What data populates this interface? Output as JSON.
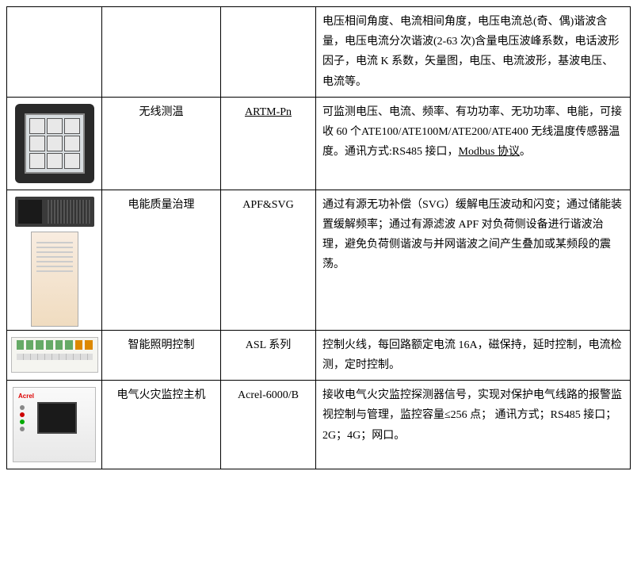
{
  "table": {
    "rows": [
      {
        "img_type": "none",
        "name": "",
        "model": "",
        "desc": "电压相间角度、电流相间角度，电压电流总(奇、偶)谐波含量，电压电流分次谐波(2-63 次)含量电压波峰系数，电话波形因子，电流 K 系数，矢量图，电压、电流波形，基波电压、电流等。"
      },
      {
        "img_type": "meter",
        "name": "无线测温",
        "model": "ARTM-Pn",
        "model_underline": true,
        "desc": "可监测电压、电流、频率、有功功率、无功功率、电能，可接收 60 个ATE100/ATE100M/ATE200/ATE400 无线温度传感器温度。通讯方式:RS485 接口，",
        "desc_u": "Modbus 协议"
      },
      {
        "img_type": "apf",
        "name": "电能质量治理",
        "model": "APF&SVG",
        "desc": "通过有源无功补偿（SVG）缓解电压波动和闪变；通过储能装置缓解频率；通过有源滤波 APF 对负荷侧设备进行谐波治理，避免负荷侧谐波与并网谐波之间产生叠加或某频段的震荡。"
      },
      {
        "img_type": "asl",
        "name": "智能照明控制",
        "model": "ASL 系列",
        "desc": "控制火线，每回路额定电流 16A，磁保持，延时控制，电流检测，定时控制。"
      },
      {
        "img_type": "acrel",
        "name": "电气火灾监控主机",
        "model": "Acrel-6000/B",
        "desc": "接收电气火灾监控探测器信号，实现对保护电气线路的报警监视控制与管理，监控容量≤256 点；\n通讯方式；RS485 接口；2G；4G；网口。"
      }
    ]
  },
  "acrel_brand": "Acrel"
}
